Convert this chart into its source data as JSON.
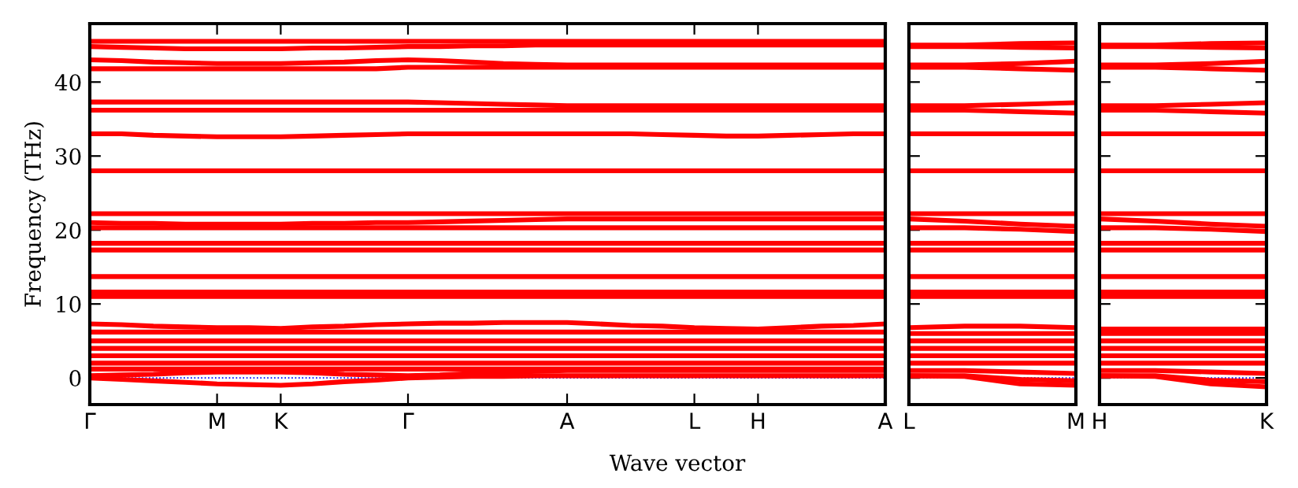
{
  "chart_data": [
    {
      "type": "line",
      "ylabel": "Frequency (THz)",
      "xlabel": "Wave vector",
      "categories": [
        "Γ",
        null,
        null,
        null,
        "M",
        null,
        "K",
        null,
        null,
        null,
        "Γ",
        null,
        null,
        null,
        null,
        "A",
        null,
        null,
        null,
        "L",
        null,
        "H",
        null,
        null,
        null,
        "A"
      ],
      "ylim": [
        -3.6,
        47.9
      ],
      "yticks": [
        0,
        10,
        20,
        30,
        40
      ],
      "marker": "none",
      "line_style": "solid",
      "ref_lines": [
        {
          "axis": "y",
          "value": 0,
          "color": "#0000ff",
          "line_style": "dotted"
        }
      ],
      "series": [
        {
          "color": "#ff0000",
          "values": [
            45.5,
            45.5,
            45.5,
            45.5,
            45.5,
            45.5,
            45.5,
            45.5,
            45.5,
            45.5,
            45.5,
            45.5,
            45.5,
            45.5,
            45.5,
            45.5,
            45.5,
            45.5,
            45.5,
            45.5,
            45.5,
            45.5,
            45.5,
            45.5,
            45.5,
            45.5
          ]
        },
        {
          "color": "#ff0000",
          "values": [
            44.8,
            44.7,
            44.6,
            44.5,
            44.5,
            44.5,
            44.5,
            44.6,
            44.6,
            44.7,
            44.8,
            44.8,
            44.9,
            44.9,
            45,
            45,
            45,
            45,
            45,
            45,
            45,
            45,
            45,
            45,
            45,
            45
          ]
        },
        {
          "color": "#ff0000",
          "values": [
            43,
            42.9,
            42.7,
            42.6,
            42.5,
            42.5,
            42.5,
            42.6,
            42.7,
            42.9,
            43,
            42.9,
            42.7,
            42.5,
            42.4,
            42.3,
            42.3,
            42.3,
            42.3,
            42.3,
            42.3,
            42.3,
            42.3,
            42.3,
            42.3,
            42.3
          ]
        },
        {
          "color": "#ff0000",
          "values": [
            41.8,
            41.8,
            41.8,
            41.8,
            41.8,
            41.8,
            41.8,
            41.8,
            41.8,
            41.8,
            42,
            42,
            42,
            42,
            42,
            42,
            42,
            42,
            42,
            42,
            42,
            42,
            42,
            42,
            42,
            42
          ]
        },
        {
          "color": "#ff0000",
          "values": [
            37.3,
            37.3,
            37.3,
            37.3,
            37.3,
            37.3,
            37.3,
            37.3,
            37.3,
            37.3,
            37.3,
            37.2,
            37.1,
            37,
            36.9,
            36.8,
            36.8,
            36.8,
            36.8,
            36.8,
            36.8,
            36.8,
            36.8,
            36.8,
            36.8,
            36.8
          ]
        },
        {
          "color": "#ff0000",
          "values": [
            36.2,
            36.2,
            36.2,
            36.2,
            36.2,
            36.2,
            36.2,
            36.2,
            36.2,
            36.2,
            36.2,
            36.2,
            36.2,
            36.2,
            36.2,
            36.2,
            36.2,
            36.2,
            36.2,
            36.2,
            36.2,
            36.2,
            36.2,
            36.2,
            36.2,
            36.2
          ]
        },
        {
          "color": "#ff0000",
          "values": [
            33,
            33,
            32.8,
            32.7,
            32.6,
            32.6,
            32.6,
            32.7,
            32.8,
            32.9,
            33,
            33,
            33,
            33,
            33,
            33,
            33,
            33,
            32.9,
            32.8,
            32.7,
            32.7,
            32.8,
            32.9,
            33,
            33
          ]
        },
        {
          "color": "#ff0000",
          "values": [
            28,
            28,
            28,
            28,
            28,
            28,
            28,
            28,
            28,
            28,
            28,
            28,
            28,
            28,
            28,
            28,
            28,
            28,
            28,
            28,
            28,
            28,
            28,
            28,
            28,
            28
          ]
        },
        {
          "color": "#ff0000",
          "values": [
            22.2,
            22.2,
            22.2,
            22.2,
            22.2,
            22.2,
            22.2,
            22.2,
            22.2,
            22.2,
            22.2,
            22.2,
            22.2,
            22.2,
            22.2,
            22.2,
            22.2,
            22.2,
            22.2,
            22.2,
            22.2,
            22.2,
            22.2,
            22.2,
            22.2,
            22.2
          ]
        },
        {
          "color": "#ff0000",
          "values": [
            21,
            20.9,
            20.9,
            20.8,
            20.8,
            20.8,
            20.8,
            20.9,
            20.9,
            21,
            21,
            21.1,
            21.2,
            21.3,
            21.4,
            21.5,
            21.5,
            21.5,
            21.5,
            21.5,
            21.5,
            21.5,
            21.5,
            21.5,
            21.5,
            21.5
          ]
        },
        {
          "color": "#ff0000",
          "values": [
            20.3,
            20.3,
            20.3,
            20.3,
            20.3,
            20.3,
            20.3,
            20.3,
            20.3,
            20.3,
            20.3,
            20.3,
            20.3,
            20.3,
            20.3,
            20.3,
            20.3,
            20.3,
            20.3,
            20.3,
            20.3,
            20.3,
            20.3,
            20.3,
            20.3,
            20.3
          ]
        },
        {
          "color": "#ff0000",
          "values": [
            18.2,
            18.2,
            18.2,
            18.2,
            18.2,
            18.2,
            18.2,
            18.2,
            18.2,
            18.2,
            18.2,
            18.2,
            18.2,
            18.2,
            18.2,
            18.2,
            18.2,
            18.2,
            18.2,
            18.2,
            18.2,
            18.2,
            18.2,
            18.2,
            18.2,
            18.2
          ]
        },
        {
          "color": "#ff0000",
          "values": [
            17.3,
            17.3,
            17.3,
            17.3,
            17.3,
            17.3,
            17.3,
            17.3,
            17.3,
            17.3,
            17.3,
            17.3,
            17.3,
            17.3,
            17.3,
            17.3,
            17.3,
            17.3,
            17.3,
            17.3,
            17.3,
            17.3,
            17.3,
            17.3,
            17.3,
            17.3
          ]
        },
        {
          "color": "#ff0000",
          "values": [
            13.7,
            13.7,
            13.7,
            13.7,
            13.7,
            13.7,
            13.7,
            13.7,
            13.7,
            13.7,
            13.7,
            13.7,
            13.7,
            13.7,
            13.7,
            13.7,
            13.7,
            13.7,
            13.7,
            13.7,
            13.7,
            13.7,
            13.7,
            13.7,
            13.7,
            13.7
          ]
        },
        {
          "color": "#ff0000",
          "values": [
            11.6,
            11.6,
            11.6,
            11.6,
            11.6,
            11.6,
            11.6,
            11.6,
            11.6,
            11.6,
            11.6,
            11.6,
            11.6,
            11.6,
            11.6,
            11.6,
            11.6,
            11.6,
            11.6,
            11.6,
            11.6,
            11.6,
            11.6,
            11.6,
            11.6,
            11.6
          ]
        },
        {
          "color": "#ff0000",
          "values": [
            11,
            11,
            11,
            11,
            11,
            11,
            11,
            11,
            11,
            11,
            11,
            11,
            11,
            11,
            11,
            11,
            11,
            11,
            11,
            11,
            11,
            11,
            11,
            11,
            11,
            11
          ]
        },
        {
          "color": "#ff0000",
          "values": [
            7.3,
            7.2,
            7.0,
            6.9,
            6.8,
            6.8,
            6.7,
            6.9,
            7.0,
            7.2,
            7.3,
            7.4,
            7.4,
            7.5,
            7.5,
            7.5,
            7.3,
            7.1,
            7.0,
            6.8,
            6.7,
            6.6,
            6.8,
            7.0,
            7.1,
            7.3
          ]
        },
        {
          "color": "#ff0000",
          "values": [
            6.2,
            6.2,
            6.2,
            6.2,
            6.2,
            6.2,
            6.2,
            6.2,
            6.2,
            6.2,
            6.2,
            6.2,
            6.2,
            6.2,
            6.2,
            6.2,
            6.2,
            6.2,
            6.2,
            6.2,
            6.2,
            6.2,
            6.2,
            6.2,
            6.2,
            6.2
          ]
        },
        {
          "color": "#ff0000",
          "values": [
            5,
            5,
            5,
            5,
            5,
            5,
            5,
            5,
            5,
            5,
            5,
            5,
            5,
            5,
            5,
            5,
            5,
            5,
            5,
            5,
            5,
            5,
            5,
            5,
            5,
            5
          ]
        },
        {
          "color": "#ff0000",
          "values": [
            4,
            4,
            4,
            4,
            4,
            4,
            4,
            4,
            4,
            4,
            4,
            4,
            4,
            4,
            4,
            4,
            4,
            4,
            4,
            4,
            4,
            4,
            4,
            4,
            4,
            4
          ]
        },
        {
          "color": "#ff0000",
          "values": [
            3,
            3,
            3,
            3,
            3,
            3,
            3,
            3,
            3,
            3,
            3,
            3,
            3,
            3,
            3,
            3,
            3,
            3,
            3,
            3,
            3,
            3,
            3,
            3,
            3,
            3
          ]
        },
        {
          "color": "#ff0000",
          "values": [
            2,
            2,
            2,
            2,
            2,
            2,
            2,
            2,
            2,
            2,
            2,
            2,
            2,
            2,
            2,
            2,
            2,
            2,
            2,
            2,
            2,
            2,
            2,
            2,
            2,
            2
          ]
        },
        {
          "color": "#ff0000",
          "values": [
            1.2,
            1.2,
            1.2,
            1.2,
            1.2,
            1.2,
            1.2,
            1.2,
            1.2,
            1.2,
            1.2,
            1.2,
            1.2,
            1.2,
            1.2,
            1.2,
            1.2,
            1.2,
            1.2,
            1.2,
            1.2,
            1.2,
            1.2,
            1.2,
            1.2,
            1.2
          ]
        },
        {
          "color": "#ff0000",
          "values": [
            0.3,
            0.4,
            0.5,
            0.7,
            0.8,
            0.8,
            0.8,
            0.7,
            0.5,
            0.4,
            0.3,
            0.4,
            0.6,
            0.7,
            0.9,
            1,
            1,
            1,
            1,
            1,
            1,
            1,
            1,
            1,
            1,
            1
          ]
        },
        {
          "color": "#ff0000",
          "values": [
            0,
            -0.2,
            -0.4,
            -0.6,
            -0.8,
            -0.9,
            -1,
            -0.8,
            -0.5,
            -0.3,
            0,
            0.1,
            0.2,
            0.2,
            0.3,
            0.3,
            0.3,
            0.3,
            0.3,
            0.3,
            0.3,
            0.3,
            0.3,
            0.3,
            0.3,
            0.3
          ]
        }
      ]
    },
    {
      "type": "line",
      "categories": [
        "L",
        null,
        null,
        "M"
      ],
      "ylim": [
        -3.6,
        47.9
      ],
      "yticks": [
        0,
        10,
        20,
        30,
        40
      ],
      "tick_labels": "x",
      "marker": "none",
      "line_style": "solid",
      "ref_lines": [
        {
          "axis": "y",
          "value": 0,
          "color": "#0000ff",
          "line_style": "dotted"
        }
      ],
      "series": [
        {
          "color": "#ff0000",
          "values": [
            45,
            45,
            45.2,
            45.3
          ]
        },
        {
          "color": "#ff0000",
          "values": [
            44.8,
            44.8,
            44.7,
            44.6
          ]
        },
        {
          "color": "#ff0000",
          "values": [
            42.3,
            42.3,
            42.5,
            42.8
          ]
        },
        {
          "color": "#ff0000",
          "values": [
            42,
            42,
            41.8,
            41.6
          ]
        },
        {
          "color": "#ff0000",
          "values": [
            36.8,
            36.8,
            37,
            37.2
          ]
        },
        {
          "color": "#ff0000",
          "values": [
            36.2,
            36.2,
            36,
            35.8
          ]
        },
        {
          "color": "#ff0000",
          "values": [
            33,
            33,
            33,
            33
          ]
        },
        {
          "color": "#ff0000",
          "values": [
            28,
            28,
            28,
            28
          ]
        },
        {
          "color": "#ff0000",
          "values": [
            22.2,
            22.2,
            22.2,
            22.2
          ]
        },
        {
          "color": "#ff0000",
          "values": [
            21.5,
            21.2,
            20.8,
            20.5
          ]
        },
        {
          "color": "#ff0000",
          "values": [
            20.3,
            20.3,
            20.1,
            19.8
          ]
        },
        {
          "color": "#ff0000",
          "values": [
            18.2,
            18.2,
            18.2,
            18.2
          ]
        },
        {
          "color": "#ff0000",
          "values": [
            17.3,
            17.3,
            17.3,
            17.3
          ]
        },
        {
          "color": "#ff0000",
          "values": [
            13.7,
            13.7,
            13.7,
            13.7
          ]
        },
        {
          "color": "#ff0000",
          "values": [
            11.6,
            11.6,
            11.6,
            11.6
          ]
        },
        {
          "color": "#ff0000",
          "values": [
            11,
            11,
            11,
            11
          ]
        },
        {
          "color": "#ff0000",
          "values": [
            6.8,
            7,
            7,
            6.8
          ]
        },
        {
          "color": "#ff0000",
          "values": [
            6,
            6,
            6,
            6
          ]
        },
        {
          "color": "#ff0000",
          "values": [
            5,
            5,
            5,
            5
          ]
        },
        {
          "color": "#ff0000",
          "values": [
            4,
            4,
            4,
            4
          ]
        },
        {
          "color": "#ff0000",
          "values": [
            3,
            3,
            3,
            3
          ]
        },
        {
          "color": "#ff0000",
          "values": [
            2,
            2,
            2,
            2
          ]
        },
        {
          "color": "#ff0000",
          "values": [
            1,
            1,
            0.8,
            0.6
          ]
        },
        {
          "color": "#ff0000",
          "values": [
            0.3,
            0.3,
            -0.2,
            -0.4
          ]
        },
        {
          "color": "#ff0000",
          "values": [
            0.3,
            0.2,
            -0.8,
            -1
          ]
        }
      ]
    },
    {
      "type": "line",
      "categories": [
        "H",
        null,
        null,
        "K"
      ],
      "ylim": [
        -3.6,
        47.9
      ],
      "yticks": [
        0,
        10,
        20,
        30,
        40
      ],
      "tick_labels": "x",
      "marker": "none",
      "line_style": "solid",
      "ref_lines": [
        {
          "axis": "y",
          "value": 0,
          "color": "#0000ff",
          "line_style": "dotted"
        }
      ],
      "series": [
        {
          "color": "#ff0000",
          "values": [
            45,
            45,
            45.2,
            45.3
          ]
        },
        {
          "color": "#ff0000",
          "values": [
            44.8,
            44.8,
            44.7,
            44.6
          ]
        },
        {
          "color": "#ff0000",
          "values": [
            42.3,
            42.3,
            42.5,
            42.8
          ]
        },
        {
          "color": "#ff0000",
          "values": [
            42,
            42,
            41.8,
            41.6
          ]
        },
        {
          "color": "#ff0000",
          "values": [
            36.8,
            36.8,
            37,
            37.2
          ]
        },
        {
          "color": "#ff0000",
          "values": [
            36.2,
            36.2,
            36,
            35.8
          ]
        },
        {
          "color": "#ff0000",
          "values": [
            33,
            33,
            33,
            33
          ]
        },
        {
          "color": "#ff0000",
          "values": [
            28,
            28,
            28,
            28
          ]
        },
        {
          "color": "#ff0000",
          "values": [
            22.2,
            22.2,
            22.2,
            22.2
          ]
        },
        {
          "color": "#ff0000",
          "values": [
            21.5,
            21.2,
            20.8,
            20.5
          ]
        },
        {
          "color": "#ff0000",
          "values": [
            20.3,
            20.3,
            20.1,
            19.8
          ]
        },
        {
          "color": "#ff0000",
          "values": [
            18.2,
            18.2,
            18.2,
            18.2
          ]
        },
        {
          "color": "#ff0000",
          "values": [
            17.3,
            17.3,
            17.3,
            17.3
          ]
        },
        {
          "color": "#ff0000",
          "values": [
            13.7,
            13.7,
            13.7,
            13.7
          ]
        },
        {
          "color": "#ff0000",
          "values": [
            11.6,
            11.6,
            11.6,
            11.6
          ]
        },
        {
          "color": "#ff0000",
          "values": [
            11,
            11,
            11,
            11
          ]
        },
        {
          "color": "#ff0000",
          "values": [
            6.6,
            6.6,
            6.6,
            6.6
          ]
        },
        {
          "color": "#ff0000",
          "values": [
            6,
            6,
            6,
            6
          ]
        },
        {
          "color": "#ff0000",
          "values": [
            5,
            5,
            5,
            5
          ]
        },
        {
          "color": "#ff0000",
          "values": [
            4,
            4,
            4,
            4
          ]
        },
        {
          "color": "#ff0000",
          "values": [
            3,
            3,
            3,
            3
          ]
        },
        {
          "color": "#ff0000",
          "values": [
            2,
            2,
            2,
            2
          ]
        },
        {
          "color": "#ff0000",
          "values": [
            1,
            1,
            0.8,
            0.6
          ]
        },
        {
          "color": "#ff0000",
          "values": [
            0.3,
            0.3,
            -0.3,
            -0.5
          ]
        },
        {
          "color": "#ff0000",
          "values": [
            0.3,
            0.2,
            -0.8,
            -1.2
          ]
        }
      ]
    }
  ]
}
